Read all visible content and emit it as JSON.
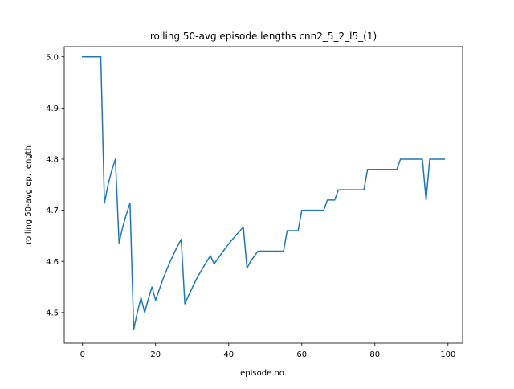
{
  "chart_data": {
    "type": "line",
    "title": "rolling 50-avg episode lengths cnn2_5_2_l5_(1)",
    "xlabel": "episode no.",
    "ylabel": "rolling 50-avg ep. length",
    "xlim": [
      -5,
      104
    ],
    "ylim": [
      4.44,
      5.02
    ],
    "xticks": [
      0,
      20,
      40,
      60,
      80,
      100
    ],
    "yticks": [
      4.5,
      4.6,
      4.7,
      4.8,
      4.9,
      5.0
    ],
    "ytick_labels": [
      "4.5",
      "4.6",
      "4.7",
      "4.8",
      "4.9",
      "5.0"
    ],
    "grid": false,
    "line_color": "#1f77b4",
    "series": [
      {
        "x": [
          0,
          1,
          2,
          3,
          4,
          5,
          6,
          7,
          8,
          9,
          10,
          11,
          12,
          13,
          14,
          15,
          16,
          17,
          18,
          19,
          20,
          21,
          22,
          23,
          24,
          25,
          26,
          27,
          28,
          29,
          30,
          31,
          32,
          33,
          34,
          35,
          36,
          37,
          38,
          39,
          40,
          41,
          42,
          43,
          44,
          45,
          46,
          47,
          48,
          49,
          50,
          51,
          52,
          53,
          54,
          55,
          56,
          57,
          58,
          59,
          60,
          61,
          62,
          63,
          64,
          65,
          66,
          67,
          68,
          69,
          70,
          71,
          72,
          73,
          74,
          75,
          76,
          77,
          78,
          79,
          80,
          81,
          82,
          83,
          84,
          85,
          86,
          87,
          88,
          89,
          90,
          91,
          92,
          93,
          94,
          95,
          96,
          97,
          98,
          99
        ],
        "y": [
          5.0,
          5.0,
          5.0,
          5.0,
          5.0,
          5.0,
          4.714,
          4.75,
          4.778,
          4.8,
          4.636,
          4.667,
          4.692,
          4.714,
          4.467,
          4.5,
          4.529,
          4.5,
          4.526,
          4.55,
          4.524,
          4.545,
          4.565,
          4.583,
          4.6,
          4.615,
          4.63,
          4.643,
          4.517,
          4.533,
          4.548,
          4.563,
          4.576,
          4.588,
          4.6,
          4.611,
          4.595,
          4.605,
          4.615,
          4.625,
          4.634,
          4.643,
          4.651,
          4.659,
          4.667,
          4.587,
          4.6,
          4.61,
          4.62,
          4.62,
          4.62,
          4.62,
          4.62,
          4.62,
          4.62,
          4.62,
          4.66,
          4.66,
          4.66,
          4.66,
          4.7,
          4.7,
          4.7,
          4.7,
          4.7,
          4.7,
          4.7,
          4.72,
          4.72,
          4.72,
          4.74,
          4.74,
          4.74,
          4.74,
          4.74,
          4.74,
          4.74,
          4.74,
          4.78,
          4.78,
          4.78,
          4.78,
          4.78,
          4.78,
          4.78,
          4.78,
          4.78,
          4.8,
          4.8,
          4.8,
          4.8,
          4.8,
          4.8,
          4.8,
          4.72,
          4.8,
          4.8,
          4.8,
          4.8,
          4.8
        ]
      }
    ]
  }
}
